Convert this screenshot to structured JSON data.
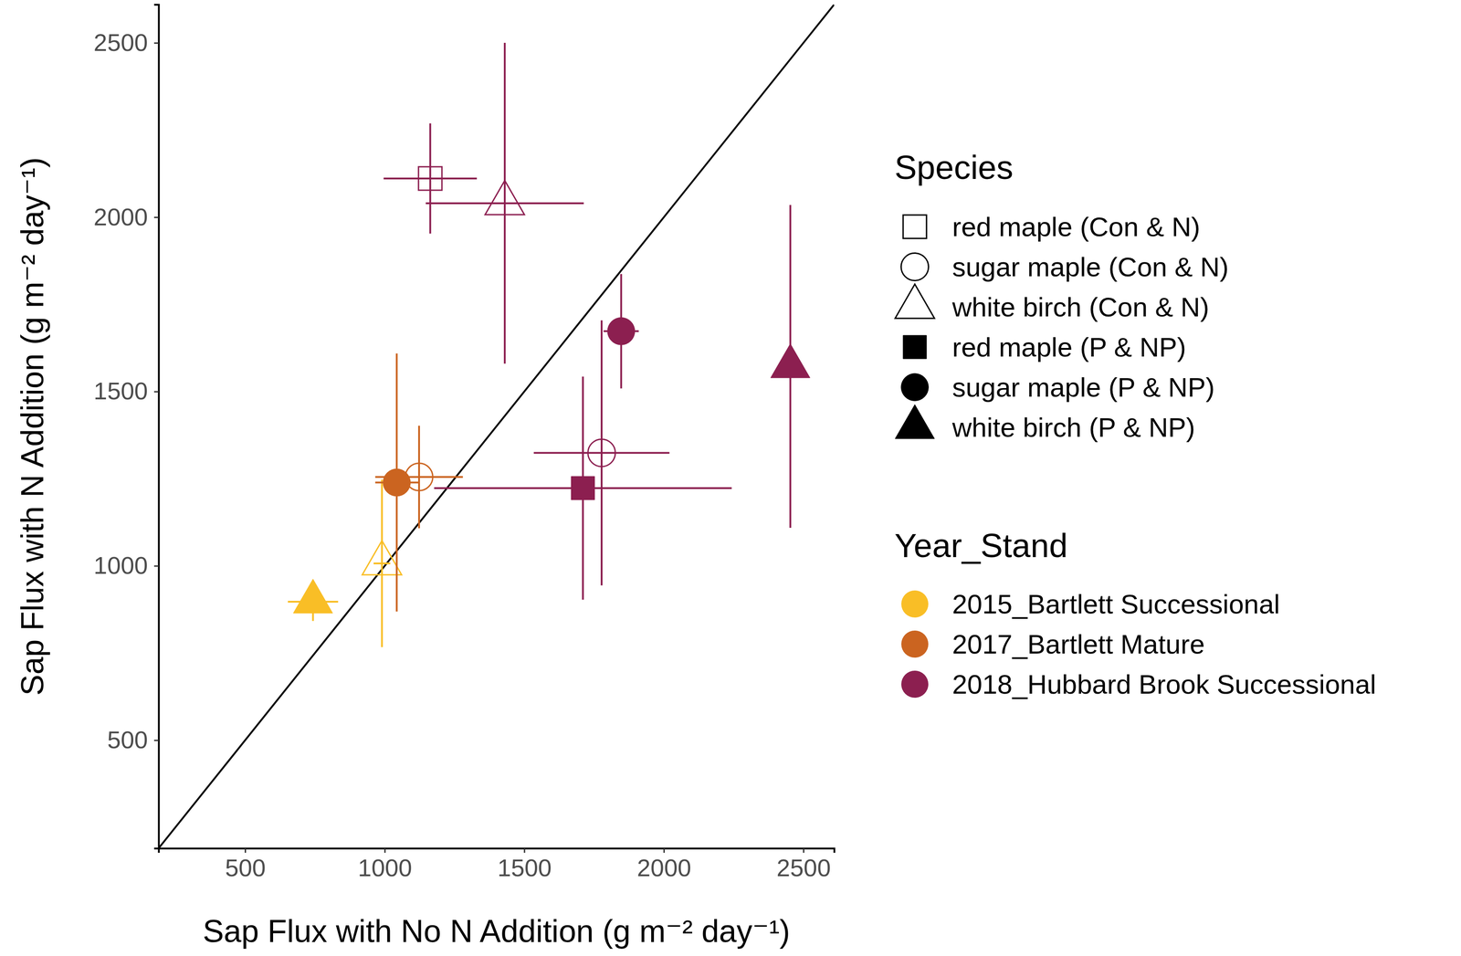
{
  "chart_data": {
    "type": "scatter",
    "xlabel": "Sap Flux with No N Addition (g m⁻² day⁻¹)",
    "ylabel": "Sap Flux with N Addition (g m⁻² day⁻¹)",
    "xlim": [
      190,
      2610
    ],
    "ylim": [
      190,
      2610
    ],
    "xticks": [
      500,
      1000,
      1500,
      2000,
      2500
    ],
    "yticks": [
      500,
      1000,
      1500,
      2000,
      2500
    ],
    "grid": false,
    "reference_line": {
      "x": [
        190,
        2610
      ],
      "y": [
        190,
        2610
      ]
    },
    "species_legend": {
      "title": "Species",
      "entries": [
        {
          "name": "red maple (Con & N)",
          "marker": "square-open"
        },
        {
          "name": "sugar maple (Con & N)",
          "marker": "circle-open"
        },
        {
          "name": "white birch (Con & N)",
          "marker": "triangle-open"
        },
        {
          "name": "red maple (P & NP)",
          "marker": "square"
        },
        {
          "name": "sugar maple (P & NP)",
          "marker": "circle"
        },
        {
          "name": "white birch (P & NP)",
          "marker": "triangle"
        }
      ]
    },
    "series_legend_title": "Year_Stand",
    "series": [
      {
        "name": "2015_Bartlett Successional",
        "color": "#F9BE26",
        "species": [
          2,
          5
        ],
        "x": [
          990,
          743
        ],
        "y": [
          1007,
          897
        ],
        "x_error": [
          30,
          90
        ],
        "y_error": [
          240,
          55
        ]
      },
      {
        "name": "2017_Bartlett Mature",
        "color": "#CB6420",
        "species": [
          1,
          4
        ],
        "x": [
          1123,
          1043
        ],
        "y": [
          1255,
          1239
        ],
        "x_error": [
          157,
          77
        ],
        "y_error": [
          147,
          370
        ]
      },
      {
        "name": "2018_Hubbard Brook Successional",
        "color": "#8C1F50",
        "species": [
          0,
          2,
          1,
          3,
          4,
          5
        ],
        "x": [
          1163,
          1430,
          1777,
          1710,
          1847,
          2453
        ],
        "y": [
          2111,
          2040,
          1324,
          1223,
          1673,
          1572
        ],
        "x_error": [
          167,
          283,
          243,
          533,
          63,
          20
        ],
        "y_error": [
          158,
          460,
          380,
          320,
          164,
          463
        ]
      }
    ]
  }
}
